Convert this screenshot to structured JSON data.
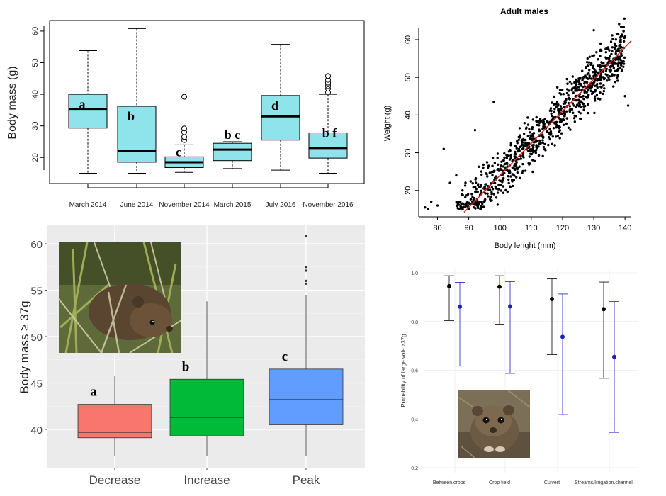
{
  "chart_data": [
    {
      "type": "box",
      "panel": "top-left",
      "ylabel": "Body mass (g)",
      "ylim": [
        14,
        62
      ],
      "yticks": [
        20,
        30,
        40,
        50,
        60
      ],
      "fill_color": "#8fe3ea",
      "boxes": [
        {
          "label": "March 2014",
          "min": 15,
          "q1": 29.3,
          "median": 35.4,
          "q3": 40,
          "max": 53.8,
          "letter": "a",
          "outliers": []
        },
        {
          "label": "June 2014",
          "min": 15,
          "q1": 18.5,
          "median": 22,
          "q3": 36.2,
          "max": 60.8,
          "letter": "b",
          "outliers": []
        },
        {
          "label": "November 2014",
          "min": 15.3,
          "q1": 16.8,
          "median": 18.5,
          "q3": 20.2,
          "max": 24,
          "letter": "c",
          "outliers": [
            25.5,
            26.5,
            28,
            29.2,
            39.2
          ]
        },
        {
          "label": "March 2015",
          "min": 16.5,
          "q1": 19,
          "median": 22.5,
          "q3": 24.5,
          "max": 25,
          "letter": "b c",
          "outliers": []
        },
        {
          "label": "July 2016",
          "min": 16,
          "q1": 25.5,
          "median": 33,
          "q3": 39.6,
          "max": 55.8,
          "letter": "d",
          "outliers": []
        },
        {
          "label": "November 2016",
          "min": 15,
          "q1": 19.8,
          "median": 23,
          "q3": 27.8,
          "max": 40,
          "letter": "b f",
          "outliers": [
            40.6,
            41.8,
            42.6,
            43.2,
            43.7,
            44.6,
            45.8
          ]
        }
      ]
    },
    {
      "type": "scatter",
      "panel": "top-right",
      "title": "Adult males",
      "xlabel": "Body lenght (mm)",
      "ylabel": "Weight (g)",
      "xlim": [
        74,
        142
      ],
      "ylim": [
        13,
        63
      ],
      "xticks": [
        80,
        90,
        100,
        110,
        120,
        130,
        140
      ],
      "yticks": [
        20,
        30,
        40,
        50,
        60
      ],
      "trend_line": {
        "slope": 0.85,
        "intercept": -61,
        "color": "#cc2222"
      },
      "points_summary": {
        "x_range": [
          76,
          140
        ],
        "n_approx": 1400,
        "note": "dense cloud around the trend line"
      }
    },
    {
      "type": "box",
      "panel": "bottom-left",
      "ylabel": "Body mass ≥ 37g",
      "ylim": [
        36.8,
        61.5
      ],
      "yticks": [
        40,
        45,
        50,
        55,
        60
      ],
      "boxes": [
        {
          "label": "Decrease",
          "min": 37.1,
          "q1": 39.1,
          "median": 39.7,
          "q3": 42.7,
          "max": 45.8,
          "letter": "a",
          "color": "#f8766d",
          "outliers": []
        },
        {
          "label": "Increase",
          "min": 37.1,
          "q1": 39.3,
          "median": 41.3,
          "q3": 45.4,
          "max": 53.8,
          "letter": "b",
          "color": "#00ba38",
          "outliers": []
        },
        {
          "label": "Peak",
          "min": 37.1,
          "q1": 40.5,
          "median": 43.2,
          "q3": 46.5,
          "max": 54.5,
          "letter": "c",
          "color": "#619cff",
          "outliers": [
            55.7,
            56,
            57.1,
            57.5,
            60.8
          ]
        }
      ]
    },
    {
      "type": "errorbar",
      "panel": "bottom-right",
      "ylabel": "Probability of large vole ≥37g",
      "ylim": [
        0.2,
        1.0
      ],
      "yticks": [
        "0.2",
        "0.4",
        "0.6",
        "0.8",
        "1.0"
      ],
      "categories": [
        "Between.crops",
        "Crop field",
        "Culvert",
        "Streams/Irrigation.channel"
      ],
      "series": [
        {
          "name": "black",
          "color": "#000000",
          "values": [
            0.945,
            0.943,
            0.892,
            0.851
          ],
          "lower": [
            0.804,
            0.789,
            0.664,
            0.567
          ],
          "upper": [
            0.988,
            0.988,
            0.975,
            0.962
          ]
        },
        {
          "name": "blue",
          "color": "#1f1fbf",
          "values": [
            0.861,
            0.862,
            0.737,
            0.655
          ],
          "lower": [
            0.617,
            0.587,
            0.418,
            0.345
          ],
          "upper": [
            0.961,
            0.964,
            0.913,
            0.882
          ]
        }
      ]
    }
  ]
}
